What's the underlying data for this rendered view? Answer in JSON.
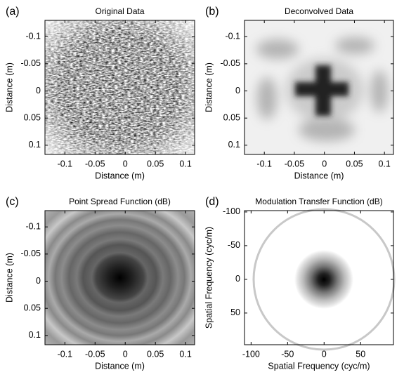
{
  "chart_data": [
    {
      "type": "image",
      "panel_label": "(a)",
      "title": "Original Data",
      "xlabel": "Distance (m)",
      "ylabel": "Distance (m)",
      "xlim": [
        -0.133,
        0.115
      ],
      "ylim": [
        -0.13,
        0.117
      ],
      "y_inverted": true,
      "xticks": [
        -0.1,
        -0.05,
        0,
        0.05,
        0.1
      ],
      "yticks": [
        -0.1,
        -0.05,
        0,
        0.05,
        0.1
      ]
    },
    {
      "type": "image",
      "panel_label": "(b)",
      "title": "Deconvolved Data",
      "xlabel": "Distance (m)",
      "ylabel": "Distance (m)",
      "xlim": [
        -0.133,
        0.115
      ],
      "ylim": [
        -0.13,
        0.117
      ],
      "y_inverted": true,
      "xticks": [
        -0.1,
        -0.05,
        0,
        0.05,
        0.1
      ],
      "yticks": [
        -0.1,
        -0.05,
        0,
        0.05,
        0.1
      ]
    },
    {
      "type": "image",
      "panel_label": "(c)",
      "title": "Point Spread Function (dB)",
      "xlabel": "Distance (m)",
      "ylabel": "Distance (m)",
      "xlim": [
        -0.133,
        0.115
      ],
      "ylim": [
        -0.13,
        0.117
      ],
      "y_inverted": true,
      "xticks": [
        -0.1,
        -0.05,
        0,
        0.05,
        0.1
      ],
      "yticks": [
        -0.1,
        -0.05,
        0,
        0.05,
        0.1
      ]
    },
    {
      "type": "image",
      "panel_label": "(d)",
      "title": "Modulation Transfer Function (dB)",
      "xlabel": "Spatial Frequency (cyc/m)",
      "ylabel": "Spatial Frequency (cyc/m)",
      "xlim": [
        -109,
        95
      ],
      "ylim": [
        -102,
        97
      ],
      "y_inverted": true,
      "xticks": [
        -100,
        -50,
        0,
        50
      ],
      "yticks": [
        -100,
        -50,
        0,
        50
      ]
    }
  ]
}
